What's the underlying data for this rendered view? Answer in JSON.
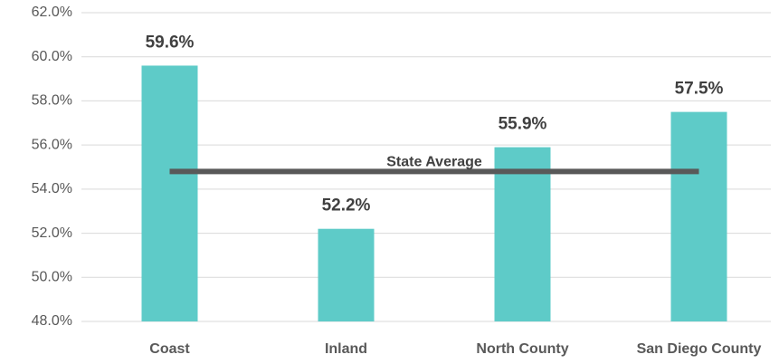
{
  "chart_data": {
    "type": "bar",
    "categories": [
      "Coast",
      "Inland",
      "North County",
      "San Diego County"
    ],
    "values": [
      59.6,
      52.2,
      55.9,
      57.5
    ],
    "value_labels": [
      "59.6%",
      "52.2%",
      "55.9%",
      "57.5%"
    ],
    "color": "#5ecbc8",
    "ylim": [
      48,
      62
    ],
    "yticks": [
      {
        "value": 48,
        "label": "48.0%"
      },
      {
        "value": 50,
        "label": "50.0%"
      },
      {
        "value": 52,
        "label": "52.0%"
      },
      {
        "value": 54,
        "label": "54.0%"
      },
      {
        "value": 56,
        "label": "56.0%"
      },
      {
        "value": 58,
        "label": "58.0%"
      },
      {
        "value": 60,
        "label": "60.0%"
      },
      {
        "value": 62,
        "label": "62.0%"
      }
    ],
    "grid": true,
    "reference_line": {
      "label": "State Average",
      "value": 54.8,
      "color": "#595959"
    }
  }
}
